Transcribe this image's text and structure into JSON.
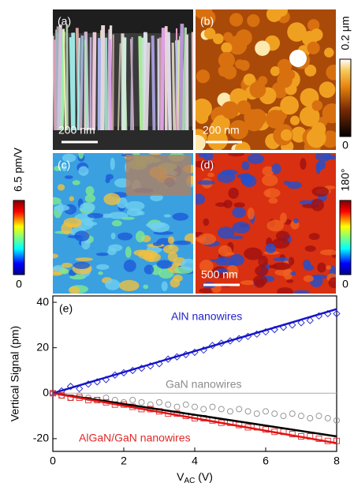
{
  "panels": [
    {
      "label": "(a)",
      "scale_bar": "200 nm"
    },
    {
      "label": "(b)",
      "scale_bar": "200 nm"
    },
    {
      "label": "(c)"
    },
    {
      "label": "(d)",
      "scale_bar": "500 nm"
    }
  ],
  "colorbars": [
    {
      "max_label": "0.2 μm",
      "min_label": "0"
    },
    {
      "max_label": "6.5 pm/V",
      "min_label": "0"
    },
    {
      "max_label": "180°",
      "min_label": "0"
    }
  ],
  "chart_data": {
    "type": "scatter",
    "panel_label": "(e)",
    "x_label_parts": [
      "V",
      "AC",
      " (V)"
    ],
    "y_label": "Vertical Signal (pm)",
    "xlim": [
      0,
      8
    ],
    "xticks": [
      0,
      2,
      4,
      6,
      8
    ],
    "ylim": [
      -25.6,
      42.8
    ],
    "yticks": [
      -20,
      0,
      20,
      40
    ],
    "reference_line": 0,
    "x": [
      0,
      0.25,
      0.5,
      0.75,
      1,
      1.25,
      1.5,
      1.75,
      2,
      2.25,
      2.5,
      2.75,
      3,
      3.25,
      3.5,
      3.75,
      4,
      4.25,
      4.5,
      4.75,
      5,
      5.25,
      5.5,
      5.75,
      6,
      6.25,
      6.5,
      6.75,
      7,
      7.25,
      7.5,
      7.75,
      8
    ],
    "series": [
      {
        "name": "AlN nanowires",
        "color": "#2323c8",
        "marker": "diamond",
        "values": [
          0,
          1,
          3,
          2,
          4,
          5,
          6,
          8,
          9,
          10,
          11,
          12,
          13,
          15,
          16,
          17,
          18,
          19,
          21,
          22,
          23,
          24,
          25,
          26,
          27,
          28,
          29,
          30,
          31,
          32,
          34,
          35,
          35
        ]
      },
      {
        "name": "GaN nanowires",
        "color": "#8c8c8c",
        "marker": "circle",
        "values": [
          0,
          -1,
          -2,
          -1,
          -2,
          -3,
          -2,
          -3,
          -4,
          -3,
          -4,
          -5,
          -4,
          -5,
          -6,
          -5,
          -6,
          -7,
          -6,
          -7,
          -8,
          -7,
          -8,
          -9,
          -8,
          -9,
          -10,
          -9,
          -10,
          -11,
          -10,
          -11,
          -12
        ]
      },
      {
        "name": "AlGaN/GaN nanowires",
        "color": "#e02828",
        "marker": "square",
        "values": [
          0,
          -1,
          -2,
          -2,
          -3,
          -3,
          -4,
          -5,
          -5,
          -6,
          -7,
          -7,
          -8,
          -9,
          -9,
          -10,
          -11,
          -11,
          -12,
          -13,
          -13,
          -14,
          -15,
          -15,
          -16,
          -17,
          -17,
          -18,
          -19,
          -19,
          -20,
          -21,
          -21
        ]
      }
    ],
    "fits": [
      {
        "color": "#1414c8",
        "x": [
          0,
          8
        ],
        "values": [
          0,
          37
        ]
      },
      {
        "color": "#000000",
        "x": [
          0,
          8
        ],
        "values": [
          0,
          -19
        ]
      },
      {
        "color": "#e01414",
        "x": [
          0,
          8
        ],
        "values": [
          0,
          -22
        ]
      }
    ]
  }
}
